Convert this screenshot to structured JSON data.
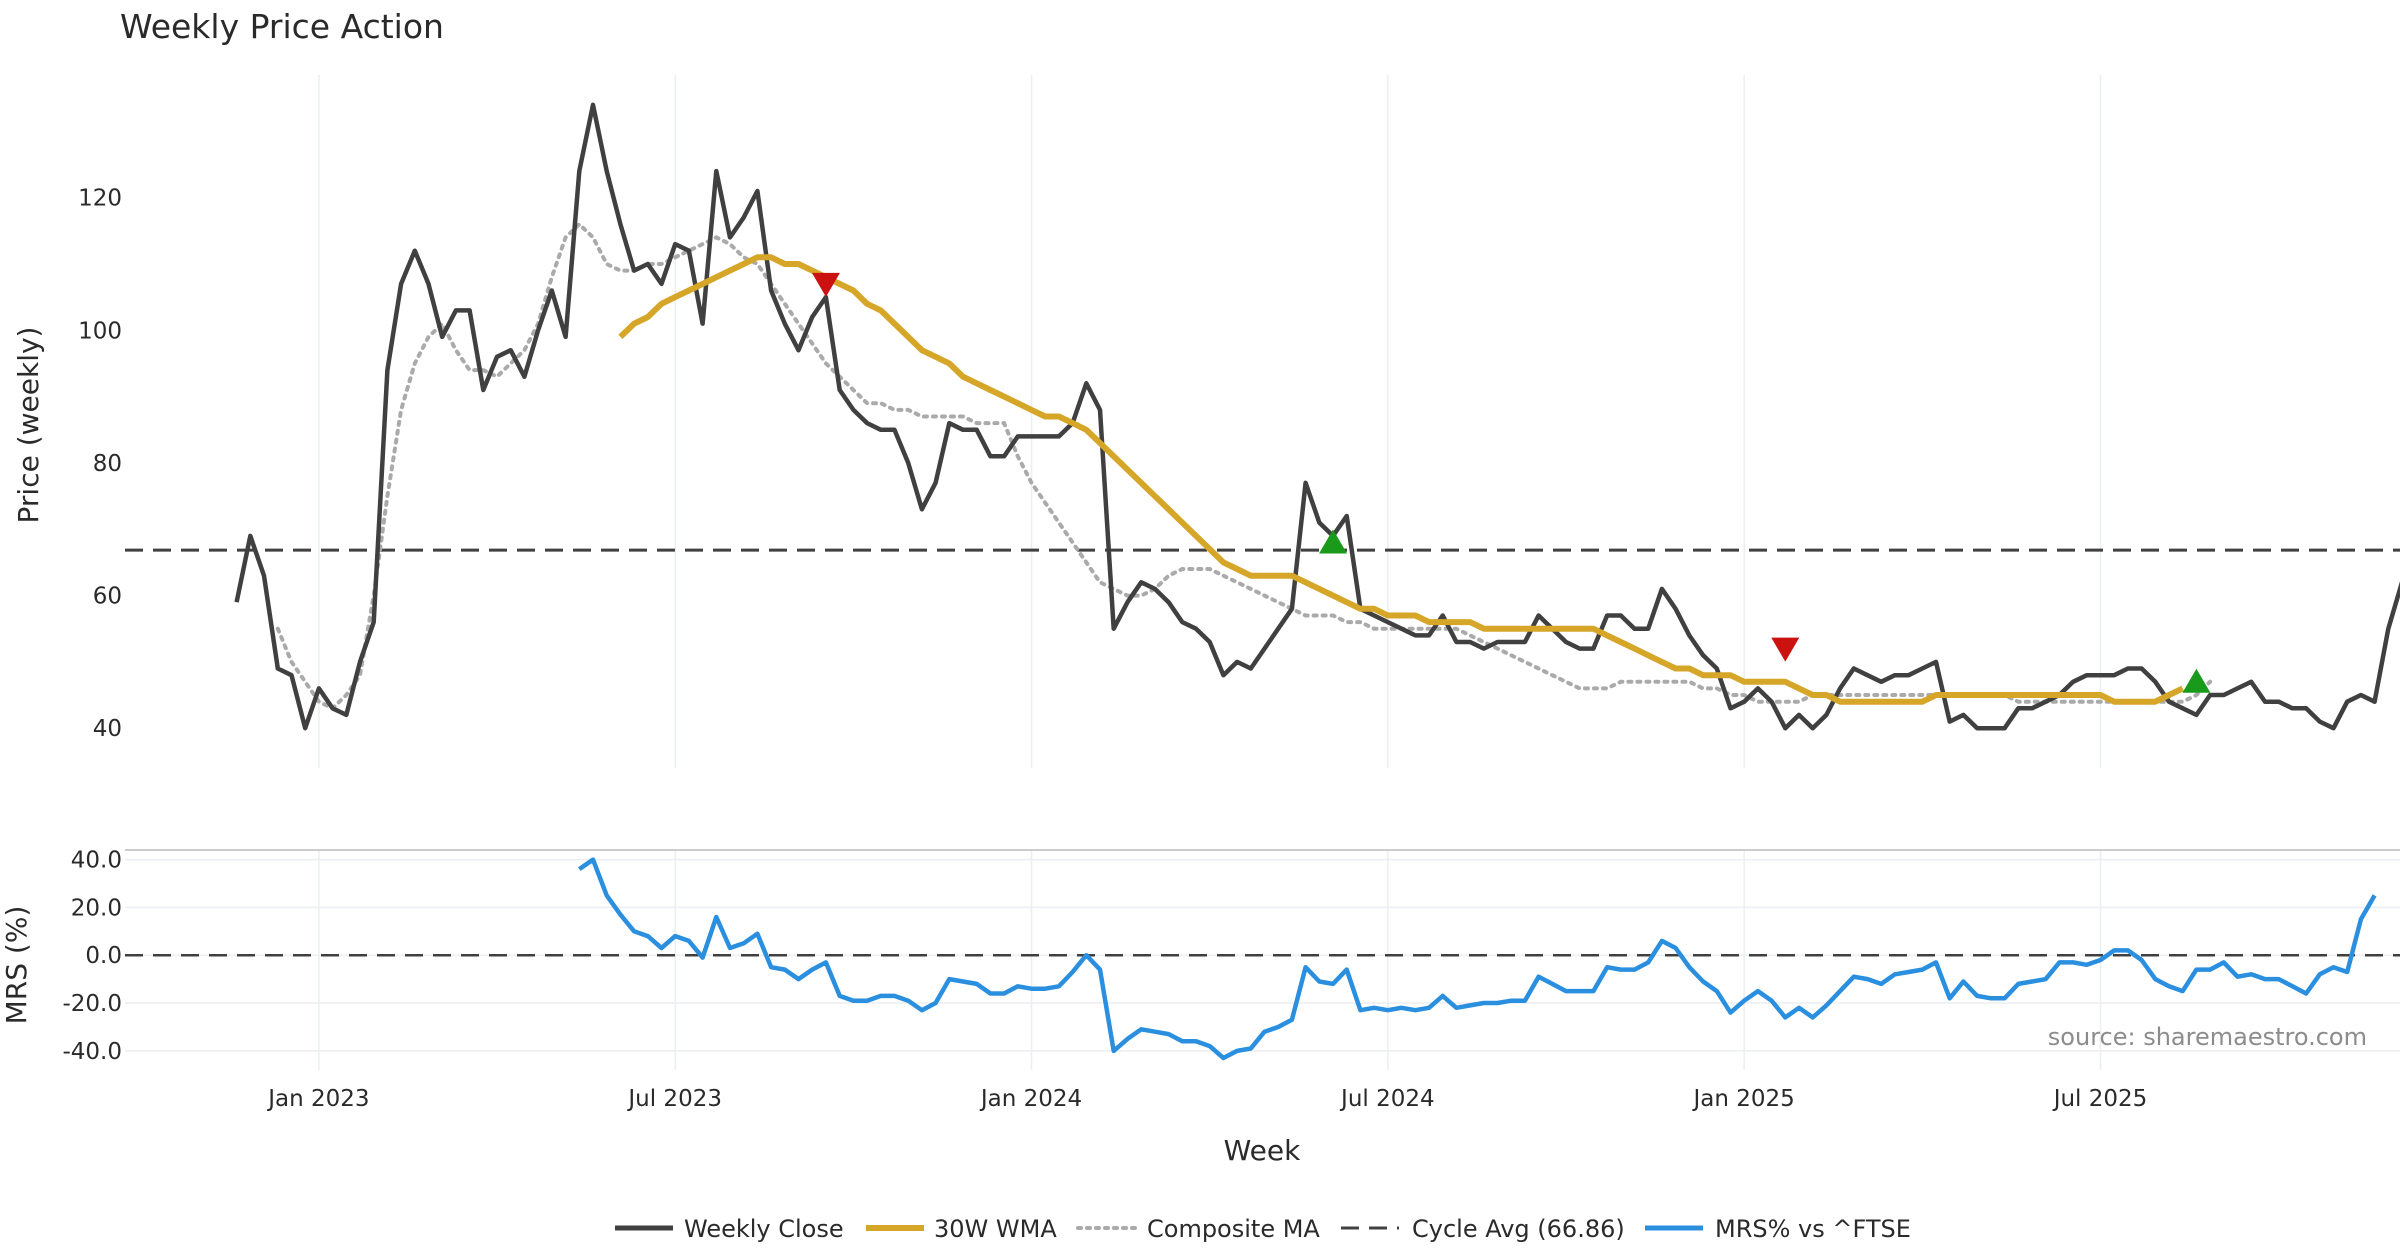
{
  "chart_data": {
    "type": "line",
    "title": "Weekly Price Action",
    "xlabel": "Week",
    "source_text": "source: sharemaestro.com",
    "x_ticks": [
      "Jan 2023",
      "Jul 2023",
      "Jan 2024",
      "Jul 2024",
      "Jan 2025",
      "Jul 2025"
    ],
    "x_tick_week_index": [
      6,
      32,
      58,
      84,
      110,
      136
    ],
    "x_range": [
      -8,
      158
    ],
    "price_panel": {
      "ylabel": "Price (weekly)",
      "ylim": [
        34,
        140
      ],
      "y_ticks": [
        40,
        60,
        80,
        100,
        120
      ],
      "cycle_avg": 66.86
    },
    "mrs_panel": {
      "ylabel": "MRS (%)",
      "ylim": [
        -48,
        44
      ],
      "y_ticks": [
        40,
        20,
        0,
        -20,
        -40
      ],
      "y_tick_labels": [
        "40.0",
        "20.0",
        "0.0",
        "-20.0",
        "-40.0"
      ],
      "zero_line": 0
    },
    "series": [
      {
        "name": "Weekly Close",
        "color": "#404040",
        "style": "solid",
        "values": [
          59,
          69,
          63,
          49,
          48,
          40,
          46,
          43,
          42,
          50,
          56,
          94,
          107,
          112,
          107,
          99,
          103,
          103,
          91,
          96,
          97,
          93,
          100,
          106,
          99,
          124,
          134,
          124,
          116,
          109,
          110,
          107,
          113,
          112,
          101,
          124,
          114,
          117,
          121,
          106,
          101,
          97,
          102,
          105,
          91,
          88,
          86,
          85,
          85,
          80,
          73,
          77,
          86,
          85,
          85,
          81,
          81,
          84,
          84,
          84,
          84,
          86,
          92,
          88,
          55,
          59,
          62,
          61,
          59,
          56,
          55,
          53,
          48,
          50,
          49,
          52,
          55,
          58,
          77,
          71,
          69,
          72,
          58,
          57,
          56,
          55,
          54,
          54,
          57,
          53,
          53,
          52,
          53,
          53,
          53,
          57,
          55,
          53,
          52,
          52,
          57,
          57,
          55,
          55,
          61,
          58,
          54,
          51,
          49,
          43,
          44,
          46,
          44,
          40,
          42,
          40,
          42,
          46,
          49,
          48,
          47,
          48,
          48,
          49,
          50,
          41,
          42,
          40,
          40,
          40,
          43,
          43,
          44,
          45,
          47,
          48,
          48,
          48,
          49,
          49,
          47,
          44,
          43,
          42,
          45,
          45,
          46,
          47,
          44,
          44,
          43,
          43,
          41,
          40,
          44,
          45,
          44,
          55,
          62
        ]
      },
      {
        "name": "30W WMA",
        "color": "#d6a629",
        "style": "solid",
        "values": [
          null,
          null,
          null,
          null,
          null,
          null,
          null,
          null,
          null,
          null,
          null,
          null,
          null,
          null,
          null,
          null,
          null,
          null,
          null,
          null,
          null,
          null,
          null,
          null,
          null,
          null,
          null,
          null,
          99,
          101,
          102,
          104,
          105,
          106,
          107,
          108,
          109,
          110,
          111,
          111,
          110,
          110,
          109,
          108,
          107,
          106,
          104,
          103,
          101,
          99,
          97,
          96,
          95,
          93,
          92,
          91,
          90,
          89,
          88,
          87,
          87,
          86,
          85,
          83,
          81,
          79,
          77,
          75,
          73,
          71,
          69,
          67,
          65,
          64,
          63,
          63,
          63,
          63,
          62,
          61,
          60,
          59,
          58,
          58,
          57,
          57,
          57,
          56,
          56,
          56,
          56,
          55,
          55,
          55,
          55,
          55,
          55,
          55,
          55,
          55,
          54,
          53,
          52,
          51,
          50,
          49,
          49,
          48,
          48,
          48,
          47,
          47,
          47,
          47,
          46,
          45,
          45,
          44,
          44,
          44,
          44,
          44,
          44,
          44,
          45,
          45,
          45,
          45,
          45,
          45,
          45,
          45,
          45,
          45,
          45,
          45,
          45,
          44,
          44,
          44,
          44,
          45,
          46
        ]
      },
      {
        "name": "Composite MA",
        "color": "#aaaaaa",
        "style": "dotted",
        "values": [
          null,
          null,
          null,
          55,
          50,
          47,
          44,
          43,
          45,
          48,
          60,
          75,
          88,
          95,
          99,
          101,
          97,
          94,
          94,
          93,
          95,
          97,
          101,
          108,
          114,
          116,
          114,
          110,
          109,
          109,
          110,
          110,
          111,
          112,
          113,
          114,
          113,
          111,
          110,
          107,
          104,
          101,
          98,
          95,
          93,
          91,
          89,
          89,
          88,
          88,
          87,
          87,
          87,
          87,
          86,
          86,
          86,
          81,
          77,
          74,
          71,
          68,
          65,
          62,
          61,
          60,
          60,
          61,
          63,
          64,
          64,
          64,
          63,
          62,
          61,
          60,
          59,
          58,
          57,
          57,
          57,
          56,
          56,
          55,
          55,
          55,
          55,
          55,
          55,
          55,
          54,
          53,
          52,
          51,
          50,
          49,
          48,
          47,
          46,
          46,
          46,
          47,
          47,
          47,
          47,
          47,
          47,
          46,
          46,
          45,
          45,
          44,
          44,
          44,
          44,
          45,
          45,
          45,
          45,
          45,
          45,
          45,
          45,
          45,
          45,
          45,
          45,
          45,
          45,
          45,
          44,
          44,
          44,
          44,
          44,
          44,
          44,
          44,
          44,
          44,
          44,
          44,
          44,
          45,
          47
        ]
      },
      {
        "name": "Cycle Avg (66.86)",
        "color": "#404040",
        "style": "dashed",
        "value": 66.86
      },
      {
        "name": "MRS% vs ^FTSE",
        "color": "#2b8fe0",
        "style": "solid",
        "values": [
          null,
          null,
          null,
          null,
          null,
          null,
          null,
          null,
          null,
          null,
          null,
          null,
          null,
          null,
          null,
          null,
          null,
          null,
          null,
          null,
          null,
          null,
          null,
          null,
          null,
          36,
          40,
          25,
          17,
          10,
          8,
          3,
          8,
          6,
          -1,
          16,
          3,
          5,
          9,
          -5,
          -6,
          -10,
          -6,
          -3,
          -17,
          -19,
          -19,
          -17,
          -17,
          -19,
          -23,
          -20,
          -10,
          -11,
          -12,
          -16,
          -16,
          -13,
          -14,
          -14,
          -13,
          -7,
          0,
          -6,
          -40,
          -35,
          -31,
          -32,
          -33,
          -36,
          -36,
          -38,
          -43,
          -40,
          -39,
          -32,
          -30,
          -27,
          -5,
          -11,
          -12,
          -6,
          -23,
          -22,
          -23,
          -22,
          -23,
          -22,
          -17,
          -22,
          -21,
          -20,
          -20,
          -19,
          -19,
          -9,
          -12,
          -15,
          -15,
          -15,
          -5,
          -6,
          -6,
          -3,
          6,
          3,
          -5,
          -11,
          -15,
          -24,
          -19,
          -15,
          -19,
          -26,
          -22,
          -26,
          -21,
          -15,
          -9,
          -10,
          -12,
          -8,
          -7,
          -6,
          -3,
          -18,
          -11,
          -17,
          -18,
          -18,
          -12,
          -11,
          -10,
          -3,
          -3,
          -4,
          -2,
          2,
          2,
          -2,
          -10,
          -13,
          -15,
          -6,
          -6,
          -3,
          -9,
          -8,
          -10,
          -10,
          -13,
          -16,
          -8,
          -5,
          -7,
          15,
          25
        ]
      }
    ],
    "signals": [
      {
        "type": "sell",
        "week": 43,
        "value": 107
      },
      {
        "type": "buy",
        "week": 80,
        "value": 68
      },
      {
        "type": "sell",
        "week": 113,
        "value": 52
      },
      {
        "type": "buy",
        "week": 143,
        "value": 47
      }
    ],
    "legend_position": "bottom-center",
    "legend": [
      "Weekly Close",
      "30W WMA",
      "Composite MA",
      "Cycle Avg (66.86)",
      "MRS% vs ^FTSE"
    ]
  }
}
